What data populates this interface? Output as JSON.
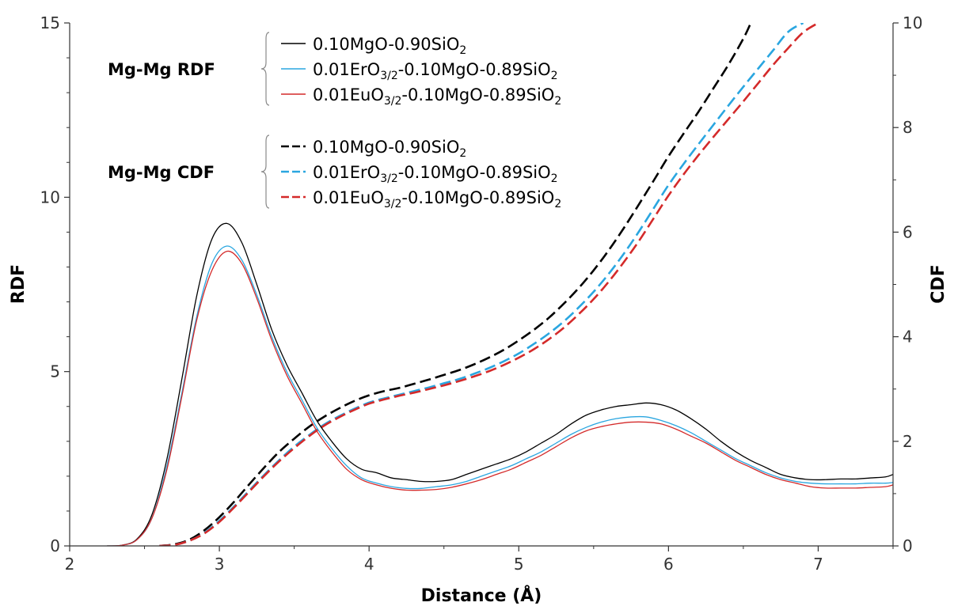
{
  "chart_data": {
    "type": "line",
    "xlabel": "Distance (Å)",
    "ylabel": "RDF",
    "y2label": "CDF",
    "xlim": [
      2,
      7.5
    ],
    "ylim": [
      0,
      15
    ],
    "y2lim": [
      0,
      10
    ],
    "x_ticks": [
      "2",
      "3",
      "4",
      "5",
      "6",
      "7"
    ],
    "y_ticks": [
      "0",
      "5",
      "10",
      "15"
    ],
    "y2_ticks": [
      "0",
      "2",
      "4",
      "6",
      "8",
      "10"
    ],
    "grid": false,
    "legend_position": "top-center",
    "legend_groups": [
      {
        "label": "Mg-Mg RDF",
        "style": "solid",
        "entries": [
          {
            "pre": "0.10MgO-0.90SiO",
            "sub": "2",
            "post": ""
          },
          {
            "pre": "0.01ErO",
            "sub": "3/2",
            "post": "-0.10MgO-0.89SiO",
            "sub2": "2"
          },
          {
            "pre": "0.01EuO",
            "sub": "3/2",
            "post": "-0.10MgO-0.89SiO",
            "sub2": "2"
          }
        ]
      },
      {
        "label": "Mg-Mg CDF",
        "style": "dashed",
        "entries": [
          {
            "pre": "0.10MgO-0.90SiO",
            "sub": "2",
            "post": ""
          },
          {
            "pre": "0.01ErO",
            "sub": "3/2",
            "post": "-0.10MgO-0.89SiO",
            "sub2": "2"
          },
          {
            "pre": "0.01EuO",
            "sub": "3/2",
            "post": "-0.10MgO-0.89SiO",
            "sub2": "2"
          }
        ]
      }
    ],
    "colors": {
      "mgo": "#000000",
      "er": "#2aa6e0",
      "eu": "#d42a2a"
    },
    "rdf_series": [
      {
        "key": "mgo",
        "x": [
          2.25,
          2.35,
          2.45,
          2.55,
          2.65,
          2.75,
          2.85,
          2.95,
          3.05,
          3.15,
          3.25,
          3.35,
          3.45,
          3.55,
          3.65,
          3.75,
          3.85,
          3.95,
          4.05,
          4.15,
          4.25,
          4.35,
          4.45,
          4.55,
          4.65,
          4.75,
          4.85,
          4.95,
          5.05,
          5.15,
          5.25,
          5.35,
          5.45,
          5.55,
          5.65,
          5.75,
          5.85,
          5.95,
          6.05,
          6.15,
          6.25,
          6.35,
          6.45,
          6.55,
          6.65,
          6.75,
          6.85,
          6.95,
          7.05,
          7.15,
          7.25,
          7.35,
          7.45,
          7.5
        ],
        "y": [
          0,
          0.02,
          0.2,
          0.9,
          2.5,
          4.8,
          7.2,
          8.8,
          9.25,
          8.7,
          7.5,
          6.2,
          5.2,
          4.4,
          3.6,
          3.0,
          2.5,
          2.2,
          2.1,
          1.95,
          1.9,
          1.85,
          1.85,
          1.9,
          2.05,
          2.2,
          2.35,
          2.5,
          2.7,
          2.95,
          3.2,
          3.5,
          3.75,
          3.9,
          4.0,
          4.05,
          4.1,
          4.05,
          3.9,
          3.65,
          3.35,
          3.0,
          2.7,
          2.45,
          2.25,
          2.05,
          1.95,
          1.9,
          1.9,
          1.92,
          1.92,
          1.95,
          1.98,
          2.05
        ]
      },
      {
        "key": "er",
        "x": [
          2.25,
          2.35,
          2.45,
          2.55,
          2.65,
          2.75,
          2.85,
          2.95,
          3.05,
          3.15,
          3.25,
          3.35,
          3.45,
          3.55,
          3.65,
          3.75,
          3.85,
          3.95,
          4.05,
          4.15,
          4.25,
          4.35,
          4.45,
          4.55,
          4.65,
          4.75,
          4.85,
          4.95,
          5.05,
          5.15,
          5.25,
          5.35,
          5.45,
          5.55,
          5.65,
          5.75,
          5.85,
          5.95,
          6.05,
          6.15,
          6.25,
          6.35,
          6.45,
          6.55,
          6.65,
          6.75,
          6.85,
          6.95,
          7.05,
          7.15,
          7.25,
          7.35,
          7.45,
          7.5
        ],
        "y": [
          0,
          0.02,
          0.18,
          0.8,
          2.3,
          4.4,
          6.6,
          8.1,
          8.6,
          8.2,
          7.2,
          6.0,
          5.0,
          4.2,
          3.4,
          2.8,
          2.3,
          1.95,
          1.8,
          1.7,
          1.65,
          1.65,
          1.7,
          1.75,
          1.85,
          2.0,
          2.15,
          2.3,
          2.5,
          2.7,
          2.95,
          3.2,
          3.4,
          3.55,
          3.65,
          3.7,
          3.7,
          3.6,
          3.45,
          3.25,
          3.0,
          2.75,
          2.5,
          2.3,
          2.1,
          1.95,
          1.85,
          1.8,
          1.78,
          1.78,
          1.78,
          1.8,
          1.8,
          1.82
        ]
      },
      {
        "key": "eu",
        "x": [
          2.25,
          2.35,
          2.45,
          2.55,
          2.65,
          2.75,
          2.85,
          2.95,
          3.05,
          3.15,
          3.25,
          3.35,
          3.45,
          3.55,
          3.65,
          3.75,
          3.85,
          3.95,
          4.05,
          4.15,
          4.25,
          4.35,
          4.45,
          4.55,
          4.65,
          4.75,
          4.85,
          4.95,
          5.05,
          5.15,
          5.25,
          5.35,
          5.45,
          5.55,
          5.65,
          5.75,
          5.85,
          5.95,
          6.05,
          6.15,
          6.25,
          6.35,
          6.45,
          6.55,
          6.65,
          6.75,
          6.85,
          6.95,
          7.05,
          7.15,
          7.25,
          7.35,
          7.45,
          7.5
        ],
        "y": [
          0,
          0.02,
          0.18,
          0.8,
          2.2,
          4.3,
          6.5,
          7.9,
          8.45,
          8.1,
          7.1,
          5.9,
          4.9,
          4.1,
          3.3,
          2.7,
          2.2,
          1.9,
          1.75,
          1.65,
          1.6,
          1.6,
          1.62,
          1.68,
          1.78,
          1.9,
          2.05,
          2.2,
          2.4,
          2.6,
          2.85,
          3.1,
          3.3,
          3.42,
          3.5,
          3.55,
          3.55,
          3.5,
          3.35,
          3.15,
          2.95,
          2.7,
          2.45,
          2.25,
          2.05,
          1.9,
          1.8,
          1.7,
          1.66,
          1.66,
          1.66,
          1.68,
          1.7,
          1.75
        ]
      }
    ],
    "cdf_series": [
      {
        "key": "mgo",
        "x": [
          2.6,
          2.7,
          2.8,
          2.9,
          3.0,
          3.1,
          3.2,
          3.3,
          3.4,
          3.5,
          3.6,
          3.7,
          3.8,
          3.9,
          4.0,
          4.1,
          4.2,
          4.3,
          4.4,
          4.5,
          4.6,
          4.7,
          4.8,
          4.9,
          5.0,
          5.1,
          5.2,
          5.3,
          5.4,
          5.5,
          5.6,
          5.7,
          5.8,
          5.9,
          6.0,
          6.1,
          6.2,
          6.3,
          6.4,
          6.5,
          6.55
        ],
        "y": [
          0,
          0.03,
          0.12,
          0.3,
          0.55,
          0.85,
          1.18,
          1.5,
          1.8,
          2.05,
          2.28,
          2.47,
          2.63,
          2.77,
          2.88,
          2.96,
          3.02,
          3.1,
          3.18,
          3.27,
          3.36,
          3.47,
          3.6,
          3.75,
          3.93,
          4.13,
          4.36,
          4.63,
          4.93,
          5.27,
          5.65,
          6.07,
          6.52,
          6.98,
          7.45,
          7.88,
          8.3,
          8.75,
          9.2,
          9.7,
          10.0
        ]
      },
      {
        "key": "er",
        "x": [
          2.6,
          2.7,
          2.8,
          2.9,
          3.0,
          3.1,
          3.2,
          3.3,
          3.4,
          3.5,
          3.6,
          3.7,
          3.8,
          3.9,
          4.0,
          4.1,
          4.2,
          4.3,
          4.4,
          4.5,
          4.6,
          4.7,
          4.8,
          4.9,
          5.0,
          5.1,
          5.2,
          5.3,
          5.4,
          5.5,
          5.6,
          5.7,
          5.8,
          5.9,
          6.0,
          6.1,
          6.2,
          6.3,
          6.4,
          6.5,
          6.6,
          6.7,
          6.8,
          6.9
        ],
        "y": [
          0,
          0.02,
          0.1,
          0.25,
          0.48,
          0.76,
          1.06,
          1.36,
          1.64,
          1.9,
          2.12,
          2.32,
          2.48,
          2.62,
          2.74,
          2.82,
          2.89,
          2.96,
          3.03,
          3.11,
          3.19,
          3.29,
          3.4,
          3.53,
          3.68,
          3.86,
          4.06,
          4.29,
          4.56,
          4.86,
          5.2,
          5.58,
          6.0,
          6.45,
          6.9,
          7.3,
          7.68,
          8.05,
          8.42,
          8.78,
          9.13,
          9.48,
          9.83,
          10.0
        ]
      },
      {
        "key": "eu",
        "x": [
          2.6,
          2.7,
          2.8,
          2.9,
          3.0,
          3.1,
          3.2,
          3.3,
          3.4,
          3.5,
          3.6,
          3.7,
          3.8,
          3.9,
          4.0,
          4.1,
          4.2,
          4.3,
          4.4,
          4.5,
          4.6,
          4.7,
          4.8,
          4.9,
          5.0,
          5.1,
          5.2,
          5.3,
          5.4,
          5.5,
          5.6,
          5.7,
          5.8,
          5.9,
          6.0,
          6.1,
          6.2,
          6.3,
          6.4,
          6.5,
          6.6,
          6.7,
          6.8,
          6.9,
          7.0
        ],
        "y": [
          0,
          0.02,
          0.1,
          0.24,
          0.46,
          0.74,
          1.04,
          1.34,
          1.62,
          1.87,
          2.1,
          2.3,
          2.46,
          2.6,
          2.72,
          2.8,
          2.87,
          2.93,
          3.0,
          3.07,
          3.15,
          3.24,
          3.34,
          3.46,
          3.6,
          3.76,
          3.95,
          4.17,
          4.43,
          4.72,
          5.05,
          5.42,
          5.82,
          6.26,
          6.7,
          7.1,
          7.47,
          7.82,
          8.16,
          8.5,
          8.85,
          9.2,
          9.52,
          9.82,
          10.0
        ]
      }
    ]
  }
}
